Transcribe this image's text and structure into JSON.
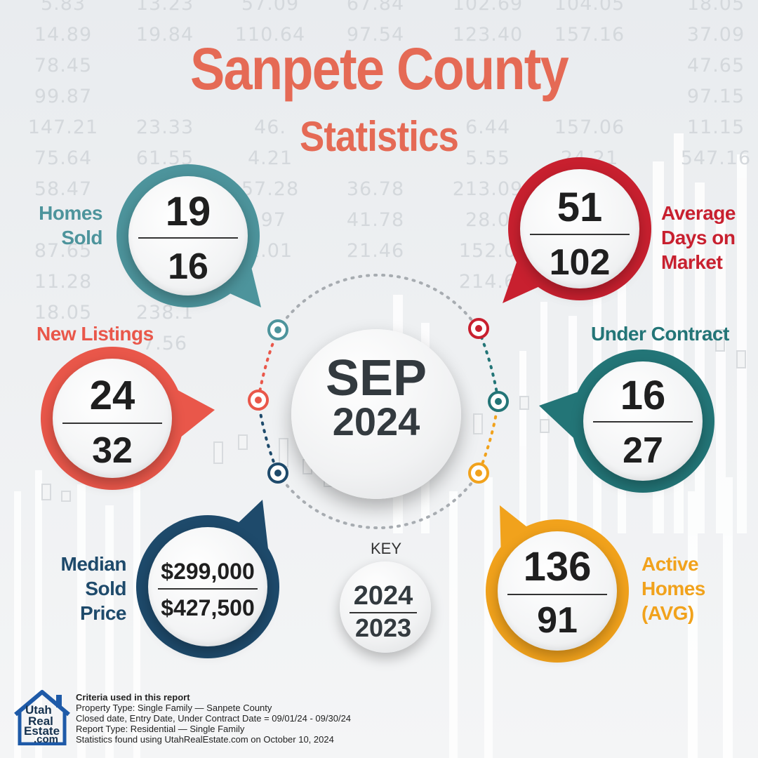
{
  "title": {
    "line1": "Sanpete County",
    "line2": "Statistics"
  },
  "background_numbers": [
    [
      "5.83",
      "13.23",
      "57.09",
      "67.84",
      "102.69",
      "104.05",
      "18.05"
    ],
    [
      "14.89",
      "19.84",
      "110.64",
      "97.54",
      "123.40",
      "157.16",
      "37.09"
    ],
    [
      "78.45",
      "",
      "",
      "",
      "",
      "",
      "47.65"
    ],
    [
      "99.87",
      "",
      "",
      "",
      "",
      "",
      "97.15"
    ],
    [
      "147.21",
      "23.33",
      "46.",
      "",
      "6.44",
      "157.06",
      "11.15"
    ],
    [
      "75.64",
      "61.55",
      "4.21",
      "",
      "5.55",
      "24.21",
      "547.16"
    ],
    [
      "58.47",
      "",
      "57.28",
      "36.78",
      "213.09",
      "",
      ""
    ],
    [
      "",
      "",
      ".97",
      "41.78",
      "28.0",
      "",
      ""
    ],
    [
      "87.65",
      "",
      "2.01",
      "21.46",
      "152.0",
      "",
      ""
    ],
    [
      "11.28",
      "",
      "",
      "",
      "214.6",
      "",
      ""
    ],
    [
      "18.05",
      "238.1",
      "",
      "",
      "",
      "",
      ""
    ],
    [
      "",
      "7.56",
      "",
      "",
      "",
      "",
      ""
    ]
  ],
  "stats": {
    "homes_sold": {
      "label": [
        "Homes",
        "Sold"
      ],
      "current": "19",
      "previous": "16",
      "color": "#4d949c"
    },
    "avg_days": {
      "label": [
        "Average",
        "Days on",
        "Market"
      ],
      "current": "51",
      "previous": "102",
      "color": "#c8202f"
    },
    "new_listings": {
      "label": [
        "New Listings"
      ],
      "current": "24",
      "previous": "32",
      "color": "#e9574a"
    },
    "under_contract": {
      "label": [
        "Under Contract"
      ],
      "current": "16",
      "previous": "27",
      "color": "#237577"
    },
    "median_price": {
      "label": [
        "Median",
        "Sold",
        "Price"
      ],
      "current": "$299,000",
      "previous": "$427,500",
      "color": "#1e4a6b"
    },
    "active_homes": {
      "label": [
        "Active",
        "Homes",
        "(AVG)"
      ],
      "current": "136",
      "previous": "91",
      "color": "#f1a21c"
    }
  },
  "center": {
    "month": "SEP",
    "year": "2024"
  },
  "key": {
    "label": "KEY",
    "current_year": "2024",
    "previous_year": "2023"
  },
  "footer": {
    "heading": "Criteria used in this report",
    "lines": [
      "Property Type: Single Family — Sanpete County",
      "Closed date, Entry Date, Under Contract Date = 09/01/24 - 09/30/24",
      "Report Type: Residential — Single Family",
      "Statistics found using UtahRealEstate.com on October 10, 2024"
    ]
  },
  "logo": {
    "line1": "Utah",
    "line2": "Real",
    "line3": "Estate",
    "line4": ".com",
    "color": "#1e5aa8"
  }
}
